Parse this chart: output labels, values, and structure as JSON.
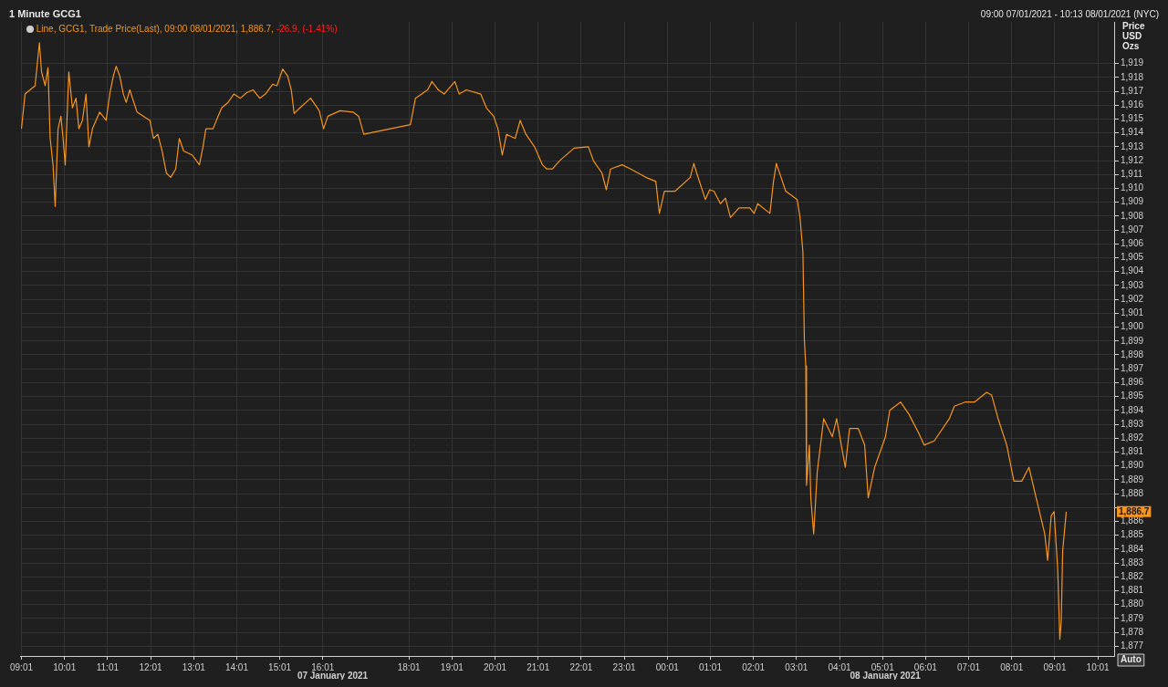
{
  "chart_data": {
    "type": "line",
    "title": "1 Minute GCG1",
    "subtitle": "09:00 07/01/2021 - 10:13 08/01/2021 (NYC)",
    "ylabel": "Price USD Ozs",
    "legend": "top left",
    "grid": true,
    "marker": "none",
    "line_style": "solid",
    "annotations": [
      "-26.9, (-1.41%)",
      "07 January 2021",
      "08 January 2021",
      {
        "text": "1,886.7",
        "y": 1886.7
      },
      "Auto"
    ],
    "xlim": [
      "2021-01-07T09:00",
      "2021-01-08T10:25"
    ],
    "ylim": [
      1876.3,
      1922
    ],
    "xticks": [
      {
        "value": "2021-01-07T09:01",
        "label": "09:01"
      },
      {
        "value": "2021-01-07T10:01",
        "label": "10:01"
      },
      {
        "value": "2021-01-07T11:01",
        "label": "11:01"
      },
      {
        "value": "2021-01-07T12:01",
        "label": "12:01"
      },
      {
        "value": "2021-01-07T13:01",
        "label": "13:01"
      },
      {
        "value": "2021-01-07T14:01",
        "label": "14:01"
      },
      {
        "value": "2021-01-07T15:01",
        "label": "15:01"
      },
      {
        "value": "2021-01-07T16:01",
        "label": "16:01"
      },
      {
        "value": "2021-01-07T18:01",
        "label": "18:01"
      },
      {
        "value": "2021-01-07T19:01",
        "label": "19:01"
      },
      {
        "value": "2021-01-07T20:01",
        "label": "20:01"
      },
      {
        "value": "2021-01-07T21:01",
        "label": "21:01"
      },
      {
        "value": "2021-01-07T22:01",
        "label": "22:01"
      },
      {
        "value": "2021-01-07T23:01",
        "label": "23:01"
      },
      {
        "value": "2021-01-08T00:01",
        "label": "00:01"
      },
      {
        "value": "2021-01-08T01:01",
        "label": "01:01"
      },
      {
        "value": "2021-01-08T02:01",
        "label": "02:01"
      },
      {
        "value": "2021-01-08T03:01",
        "label": "03:01"
      },
      {
        "value": "2021-01-08T04:01",
        "label": "04:01"
      },
      {
        "value": "2021-01-08T05:01",
        "label": "05:01"
      },
      {
        "value": "2021-01-08T06:01",
        "label": "06:01"
      },
      {
        "value": "2021-01-08T07:01",
        "label": "07:01"
      },
      {
        "value": "2021-01-08T08:01",
        "label": "08:01"
      },
      {
        "value": "2021-01-08T09:01",
        "label": "09:01"
      },
      {
        "value": "2021-01-08T10:01",
        "label": "10:01"
      }
    ],
    "yticks": [
      {
        "value": 1877,
        "label": "1,877"
      },
      {
        "value": 1878,
        "label": "1,878"
      },
      {
        "value": 1879,
        "label": "1,879"
      },
      {
        "value": 1880,
        "label": "1,880"
      },
      {
        "value": 1881,
        "label": "1,881"
      },
      {
        "value": 1882,
        "label": "1,882"
      },
      {
        "value": 1883,
        "label": "1,883"
      },
      {
        "value": 1884,
        "label": "1,884"
      },
      {
        "value": 1885,
        "label": "1,885"
      },
      {
        "value": 1886,
        "label": "1,886"
      },
      {
        "value": 1887,
        "label": null
      },
      {
        "value": 1888,
        "label": "1,888"
      },
      {
        "value": 1889,
        "label": "1,889"
      },
      {
        "value": 1890,
        "label": "1,890"
      },
      {
        "value": 1891,
        "label": "1,891"
      },
      {
        "value": 1892,
        "label": "1,892"
      },
      {
        "value": 1893,
        "label": "1,893"
      },
      {
        "value": 1894,
        "label": "1,894"
      },
      {
        "value": 1895,
        "label": "1,895"
      },
      {
        "value": 1896,
        "label": "1,896"
      },
      {
        "value": 1897,
        "label": "1,897"
      },
      {
        "value": 1898,
        "label": "1,898"
      },
      {
        "value": 1899,
        "label": "1,899"
      },
      {
        "value": 1900,
        "label": "1,900"
      },
      {
        "value": 1901,
        "label": "1,901"
      },
      {
        "value": 1902,
        "label": "1,902"
      },
      {
        "value": 1903,
        "label": "1,903"
      },
      {
        "value": 1904,
        "label": "1,904"
      },
      {
        "value": 1905,
        "label": "1,905"
      },
      {
        "value": 1906,
        "label": "1,906"
      },
      {
        "value": 1907,
        "label": "1,907"
      },
      {
        "value": 1908,
        "label": "1,908"
      },
      {
        "value": 1909,
        "label": "1,909"
      },
      {
        "value": 1910,
        "label": "1,910"
      },
      {
        "value": 1911,
        "label": "1,911"
      },
      {
        "value": 1912,
        "label": "1,912"
      },
      {
        "value": 1913,
        "label": "1,913"
      },
      {
        "value": 1914,
        "label": "1,914"
      },
      {
        "value": 1915,
        "label": "1,915"
      },
      {
        "value": 1916,
        "label": "1,916"
      },
      {
        "value": 1917,
        "label": "1,917"
      },
      {
        "value": 1918,
        "label": "1,918"
      },
      {
        "value": 1919,
        "label": "1,919"
      }
    ],
    "series": [
      {
        "name": "Line, GCG1, Trade Price(Last), 09:00 08/01/2021, 1,886.7,",
        "color": "#f7941d",
        "x": [
          "2021-01-07T09:01",
          "2021-01-07T09:06",
          "2021-01-07T09:13",
          "2021-01-07T09:20",
          "2021-01-07T09:26",
          "2021-01-07T09:29",
          "2021-01-07T09:34",
          "2021-01-07T09:38",
          "2021-01-07T09:41",
          "2021-01-07T09:45",
          "2021-01-07T09:48",
          "2021-01-07T09:52",
          "2021-01-07T09:56",
          "2021-01-07T09:59",
          "2021-01-07T10:02",
          "2021-01-07T10:07",
          "2021-01-07T10:12",
          "2021-01-07T10:17",
          "2021-01-07T10:21",
          "2021-01-07T10:26",
          "2021-01-07T10:31",
          "2021-01-07T10:35",
          "2021-01-07T10:40",
          "2021-01-07T10:50",
          "2021-01-07T10:59",
          "2021-01-07T11:04",
          "2021-01-07T11:09",
          "2021-01-07T11:13",
          "2021-01-07T11:18",
          "2021-01-07T11:23",
          "2021-01-07T11:27",
          "2021-01-07T11:32",
          "2021-01-07T11:42",
          "2021-01-07T11:51",
          "2021-01-07T12:00",
          "2021-01-07T12:05",
          "2021-01-07T12:11",
          "2021-01-07T12:17",
          "2021-01-07T12:23",
          "2021-01-07T12:29",
          "2021-01-07T12:36",
          "2021-01-07T12:41",
          "2021-01-07T12:47",
          "2021-01-07T12:59",
          "2021-01-07T13:09",
          "2021-01-07T13:14",
          "2021-01-07T13:18",
          "2021-01-07T13:28",
          "2021-01-07T13:35",
          "2021-01-07T13:40",
          "2021-01-07T13:49",
          "2021-01-07T13:57",
          "2021-01-07T14:06",
          "2021-01-07T14:15",
          "2021-01-07T14:24",
          "2021-01-07T14:33",
          "2021-01-07T14:41",
          "2021-01-07T14:51",
          "2021-01-07T14:57",
          "2021-01-07T15:05",
          "2021-01-07T15:12",
          "2021-01-07T15:17",
          "2021-01-07T15:21",
          "2021-01-07T15:29",
          "2021-01-07T15:44",
          "2021-01-07T15:56",
          "2021-01-07T16:02",
          "2021-01-07T16:08",
          "2021-01-07T16:25",
          "2021-01-07T16:43",
          "2021-01-07T16:51",
          "2021-01-07T16:58",
          "2021-01-07T18:03",
          "2021-01-07T18:10",
          "2021-01-07T18:27",
          "2021-01-07T18:33",
          "2021-01-07T18:42",
          "2021-01-07T18:50",
          "2021-01-07T19:00",
          "2021-01-07T19:05",
          "2021-01-07T19:11",
          "2021-01-07T19:21",
          "2021-01-07T19:41",
          "2021-01-07T19:49",
          "2021-01-07T19:59",
          "2021-01-07T20:05",
          "2021-01-07T20:11",
          "2021-01-07T20:17",
          "2021-01-07T20:29",
          "2021-01-07T20:36",
          "2021-01-07T20:44",
          "2021-01-07T20:56",
          "2021-01-07T21:07",
          "2021-01-07T21:13",
          "2021-01-07T21:21",
          "2021-01-07T21:31",
          "2021-01-07T21:51",
          "2021-01-07T22:11",
          "2021-01-07T22:18",
          "2021-01-07T22:30",
          "2021-01-07T22:36",
          "2021-01-07T22:42",
          "2021-01-07T22:58",
          "2021-01-07T23:10",
          "2021-01-07T23:31",
          "2021-01-07T23:45",
          "2021-01-07T23:50",
          "2021-01-07T23:57",
          "2021-01-08T00:12",
          "2021-01-08T00:33",
          "2021-01-08T00:38",
          "2021-01-08T00:42",
          "2021-01-08T00:54",
          "2021-01-08T01:00",
          "2021-01-08T01:06",
          "2021-01-08T01:15",
          "2021-01-08T01:22",
          "2021-01-08T01:29",
          "2021-01-08T01:41",
          "2021-01-08T01:56",
          "2021-01-08T02:02",
          "2021-01-08T02:07",
          "2021-01-08T02:24",
          "2021-01-08T02:29",
          "2021-01-08T02:33",
          "2021-01-08T02:46",
          "2021-01-08T03:02",
          "2021-01-08T03:06",
          "2021-01-08T03:10",
          "2021-01-08T03:12",
          "2021-01-08T03:14",
          "2021-01-08T03:15",
          "2021-01-08T03:19",
          "2021-01-08T03:21",
          "2021-01-08T03:25",
          "2021-01-08T03:30",
          "2021-01-08T03:39",
          "2021-01-08T03:51",
          "2021-01-08T03:57",
          "2021-01-08T04:09",
          "2021-01-08T04:15",
          "2021-01-08T04:27",
          "2021-01-08T04:36",
          "2021-01-08T04:41",
          "2021-01-08T04:50",
          "2021-01-08T05:05",
          "2021-01-08T05:11",
          "2021-01-08T05:26",
          "2021-01-08T05:38",
          "2021-01-08T05:51",
          "2021-01-08T05:59",
          "2021-01-08T06:13",
          "2021-01-08T06:34",
          "2021-01-08T06:41",
          "2021-01-08T06:56",
          "2021-01-08T07:09",
          "2021-01-08T07:26",
          "2021-01-08T07:33",
          "2021-01-08T07:42",
          "2021-01-08T07:54",
          "2021-01-08T08:04",
          "2021-01-08T08:15",
          "2021-01-08T08:25",
          "2021-01-08T08:35",
          "2021-01-08T08:47",
          "2021-01-08T08:51",
          "2021-01-08T08:56",
          "2021-01-08T09:00",
          "2021-01-08T09:05",
          "2021-01-08T09:08",
          "2021-01-08T09:10",
          "2021-01-08T09:12",
          "2021-01-08T09:17"
        ],
        "values": [
          1914.3,
          1916.8,
          1917.1,
          1917.4,
          1920.5,
          1918.4,
          1917.4,
          1918.7,
          1913.6,
          1911.7,
          1908.7,
          1914.3,
          1915.2,
          1913.6,
          1911.7,
          1918.4,
          1915.8,
          1916.5,
          1914.3,
          1914.9,
          1916.8,
          1913.0,
          1914.3,
          1915.5,
          1914.9,
          1916.8,
          1918.1,
          1918.8,
          1918.1,
          1916.8,
          1916.2,
          1917.1,
          1915.5,
          1915.2,
          1914.9,
          1913.6,
          1913.9,
          1912.7,
          1911.1,
          1910.8,
          1911.4,
          1913.6,
          1912.7,
          1912.4,
          1911.7,
          1913.0,
          1914.3,
          1914.3,
          1915.2,
          1915.8,
          1916.2,
          1916.8,
          1916.5,
          1916.9,
          1917.1,
          1916.5,
          1916.8,
          1917.5,
          1917.4,
          1918.6,
          1918.1,
          1917.1,
          1915.4,
          1915.8,
          1916.5,
          1915.6,
          1914.3,
          1915.2,
          1915.6,
          1915.5,
          1915.2,
          1913.9,
          1914.6,
          1916.5,
          1917.1,
          1917.7,
          1917.1,
          1916.8,
          1917.4,
          1917.7,
          1916.8,
          1917.1,
          1916.8,
          1915.8,
          1915.2,
          1914.3,
          1912.4,
          1913.9,
          1913.6,
          1914.9,
          1913.9,
          1913.0,
          1911.7,
          1911.4,
          1911.4,
          1912.0,
          1912.9,
          1913.0,
          1912.0,
          1911.1,
          1909.9,
          1911.4,
          1911.7,
          1911.4,
          1910.8,
          1910.5,
          1908.2,
          1909.8,
          1909.8,
          1910.8,
          1911.8,
          1911.1,
          1909.2,
          1909.9,
          1909.8,
          1908.9,
          1909.3,
          1907.9,
          1908.6,
          1908.6,
          1908.2,
          1908.9,
          1908.2,
          1910.5,
          1911.8,
          1909.8,
          1909.2,
          1907.9,
          1905.4,
          1899.1,
          1897.2,
          1888.6,
          1891.5,
          1887.7,
          1885.1,
          1889.6,
          1893.4,
          1892.1,
          1893.4,
          1889.9,
          1892.7,
          1892.7,
          1891.5,
          1887.7,
          1889.9,
          1892.1,
          1894.0,
          1894.6,
          1893.7,
          1892.4,
          1891.5,
          1891.8,
          1893.4,
          1894.3,
          1894.6,
          1894.6,
          1895.3,
          1895.1,
          1893.4,
          1891.5,
          1888.9,
          1888.9,
          1889.9,
          1887.7,
          1885.1,
          1883.2,
          1886.4,
          1886.7,
          1882.6,
          1877.5,
          1878.8,
          1883.9,
          1886.7
        ]
      }
    ]
  }
}
